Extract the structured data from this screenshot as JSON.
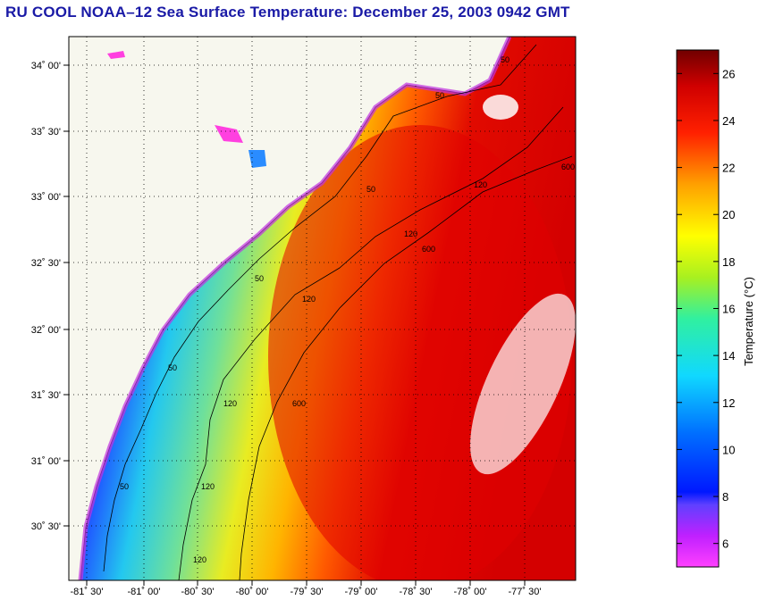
{
  "title": "RU COOL  NOAA–12  Sea Surface Temperature:  December 25, 2003 0942 GMT",
  "map": {
    "lat_ticks": [
      "34˚ 00'",
      "33˚ 30'",
      "33˚ 00'",
      "32˚ 30'",
      "32˚ 00'",
      "31˚ 30'",
      "31˚ 00'",
      "30˚ 30'"
    ],
    "lon_ticks": [
      "-81˚ 30'",
      "-81˚ 00'",
      "-80˚ 30'",
      "-80˚ 00'",
      "-79˚ 30'",
      "-79˚ 00'",
      "-78˚ 30'",
      "-78˚ 00'",
      "-77˚ 30'"
    ],
    "contour_labels": [
      "50",
      "50",
      "50",
      "50",
      "50",
      "50",
      "120",
      "120",
      "120",
      "120",
      "120",
      "120",
      "600",
      "600",
      "600"
    ]
  },
  "colorbar": {
    "label": "Temperature (°C)",
    "ticks": [
      "26",
      "24",
      "22",
      "20",
      "18",
      "16",
      "14",
      "12",
      "10",
      "8",
      "6"
    ],
    "range": [
      5,
      27
    ]
  }
}
